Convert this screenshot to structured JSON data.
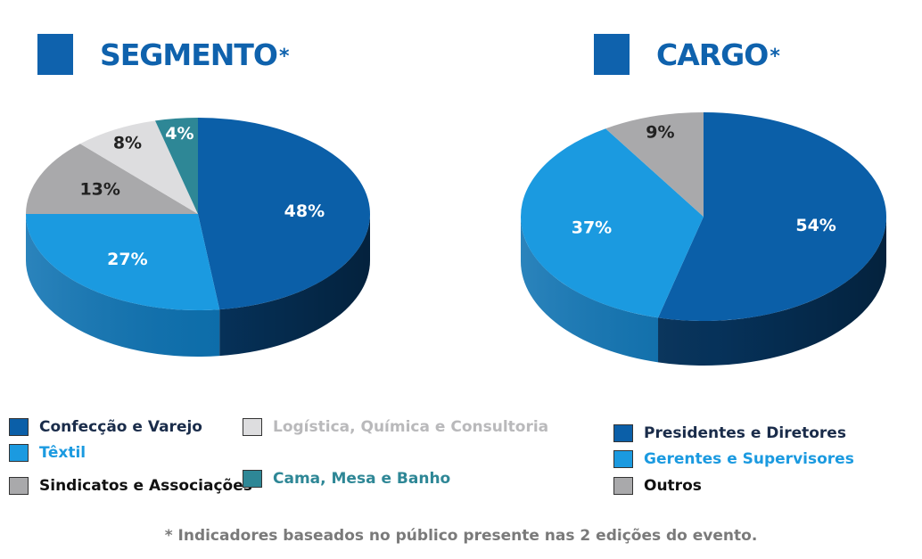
{
  "headings": {
    "segmento": {
      "title": "SEGMENTO",
      "star": "*"
    },
    "cargo": {
      "title": "CARGO",
      "star": "*"
    }
  },
  "footnote": "* Indicadores baseados no público presente nas 2 edições do evento.",
  "chart_data": [
    {
      "type": "pie",
      "title": "SEGMENTO*",
      "slices": [
        {
          "label": "Confecção e Varejo",
          "value": 48,
          "display": "48%",
          "color": "#0b5fa8",
          "side": "#06345e",
          "text_color": "#ffffff",
          "legend_color": "#1a2c4a"
        },
        {
          "label": "Têxtil",
          "value": 27,
          "display": "27%",
          "color": "#1b9ae0",
          "side": "#0e73b3",
          "text_color": "#ffffff",
          "legend_color": "#1b9ae0"
        },
        {
          "label": "Sindicatos e Associações",
          "value": 13,
          "display": "13%",
          "color": "#a9a9ab",
          "side": "#7d7d80",
          "text_color": "#222222",
          "legend_color": "#111111"
        },
        {
          "label": "Logística, Química e Consultoria",
          "value": 8,
          "display": "8%",
          "color": "#dddddf",
          "side": "#b5b5b8",
          "text_color": "#222222",
          "legend_color": "#b9b9bb"
        },
        {
          "label": "Cama, Mesa e Banho",
          "value": 4,
          "display": "4%",
          "color": "#2e8796",
          "side": "#1d5f6b",
          "text_color": "#ffffff",
          "legend_color": "#2e8796"
        }
      ]
    },
    {
      "type": "pie",
      "title": "CARGO*",
      "slices": [
        {
          "label": "Presidentes e Diretores",
          "value": 54,
          "display": "54%",
          "color": "#0b5fa8",
          "side": "#06345e",
          "text_color": "#ffffff",
          "legend_color": "#1a2c4a"
        },
        {
          "label": "Gerentes e Supervisores",
          "value": 37,
          "display": "37%",
          "color": "#1b9ae0",
          "side": "#0e73b3",
          "text_color": "#ffffff",
          "legend_color": "#1b9ae0"
        },
        {
          "label": "Outros",
          "value": 9,
          "display": "9%",
          "color": "#a9a9ab",
          "side": "#7d7d80",
          "text_color": "#222222",
          "legend_color": "#111111"
        }
      ]
    }
  ]
}
